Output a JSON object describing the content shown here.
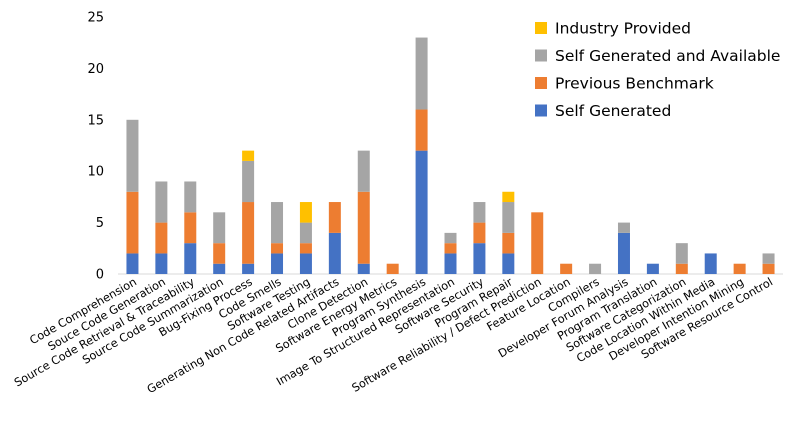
{
  "chart_data": {
    "type": "bar",
    "stacked": true,
    "title": "",
    "xlabel": "",
    "ylabel": "",
    "ylim": [
      0,
      25
    ],
    "yticks": [
      0,
      5,
      10,
      15,
      20,
      25
    ],
    "grid": false,
    "legend_position": "top-right",
    "categories": [
      "Code Comprehension",
      "Souce Code Generation",
      "Source Code Retrieval & Traceability",
      "Source Code Summarization",
      "Bug-Fixing Process",
      "Code Smells",
      "Software Testing",
      "Generating Non Code Related Artifacts",
      "Clone Detection",
      "Software Energy Metrics",
      "Program Synthesis",
      "Image To Structured Representation",
      "Software Security",
      "Program Repair",
      "Software Reliability / Defect Prediction",
      "Feature Location",
      "Compilers",
      "Developer Forum Analysis",
      "Program Translation",
      "Software Categorization",
      "Code Location Within Media",
      "Developer Intention Mining",
      "Software Resource Control"
    ],
    "series": [
      {
        "name": "Self Generated",
        "color": "#4472c4",
        "values": [
          2,
          2,
          3,
          1,
          1,
          2,
          2,
          4,
          1,
          0,
          12,
          2,
          3,
          2,
          0,
          0,
          0,
          4,
          1,
          0,
          2,
          0,
          0
        ]
      },
      {
        "name": "Previous Benchmark",
        "color": "#ed7d31",
        "values": [
          6,
          3,
          3,
          2,
          6,
          1,
          1,
          3,
          7,
          1,
          4,
          1,
          2,
          2,
          6,
          1,
          0,
          0,
          0,
          1,
          0,
          1,
          1
        ]
      },
      {
        "name": "Self Generated and Available",
        "color": "#a5a5a5",
        "values": [
          7,
          4,
          3,
          3,
          4,
          4,
          2,
          0,
          4,
          0,
          7,
          1,
          2,
          3,
          0,
          0,
          1,
          1,
          0,
          2,
          0,
          0,
          1
        ]
      },
      {
        "name": "Industry Provided",
        "color": "#ffc000",
        "values": [
          0,
          0,
          0,
          0,
          1,
          0,
          2,
          0,
          0,
          0,
          0,
          0,
          0,
          1,
          0,
          0,
          0,
          0,
          0,
          0,
          0,
          0,
          0
        ]
      }
    ],
    "legend_order": [
      "Industry Provided",
      "Self Generated and Available",
      "Previous Benchmark",
      "Self Generated"
    ]
  }
}
